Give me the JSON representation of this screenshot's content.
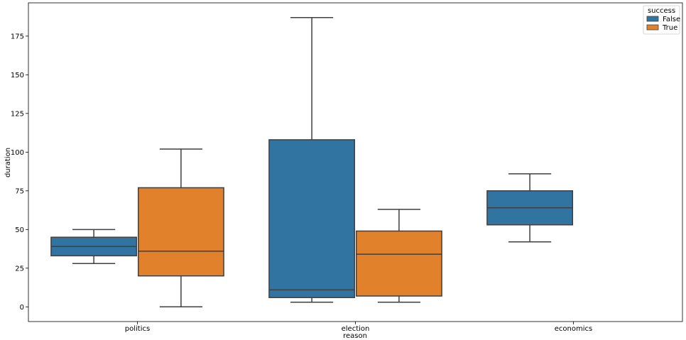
{
  "chart_data": {
    "type": "box",
    "xlabel": "reason",
    "ylabel": "duration",
    "categories": [
      "politics",
      "election",
      "economics"
    ],
    "ylim": [
      -9.5,
      196.5
    ],
    "yticks": [
      0,
      25,
      50,
      75,
      100,
      125,
      150,
      175
    ],
    "grid": false,
    "legend": {
      "title": "success",
      "position": "top-right"
    },
    "series": [
      {
        "name": "False",
        "color": "#3274a1",
        "boxes": [
          {
            "category": "politics",
            "whislo": 28,
            "q1": 33,
            "med": 39,
            "q3": 45,
            "whishi": 50
          },
          {
            "category": "election",
            "whislo": 3,
            "q1": 6,
            "med": 11,
            "q3": 108,
            "whishi": 187
          },
          {
            "category": "economics",
            "whislo": 42,
            "q1": 53,
            "med": 64,
            "q3": 75,
            "whishi": 86
          }
        ]
      },
      {
        "name": "True",
        "color": "#e1812c",
        "boxes": [
          {
            "category": "politics",
            "whislo": 0,
            "q1": 20,
            "med": 36,
            "q3": 77,
            "whishi": 102
          },
          {
            "category": "election",
            "whislo": 3,
            "q1": 7,
            "med": 34,
            "q3": 49,
            "whishi": 63
          }
        ]
      }
    ]
  }
}
